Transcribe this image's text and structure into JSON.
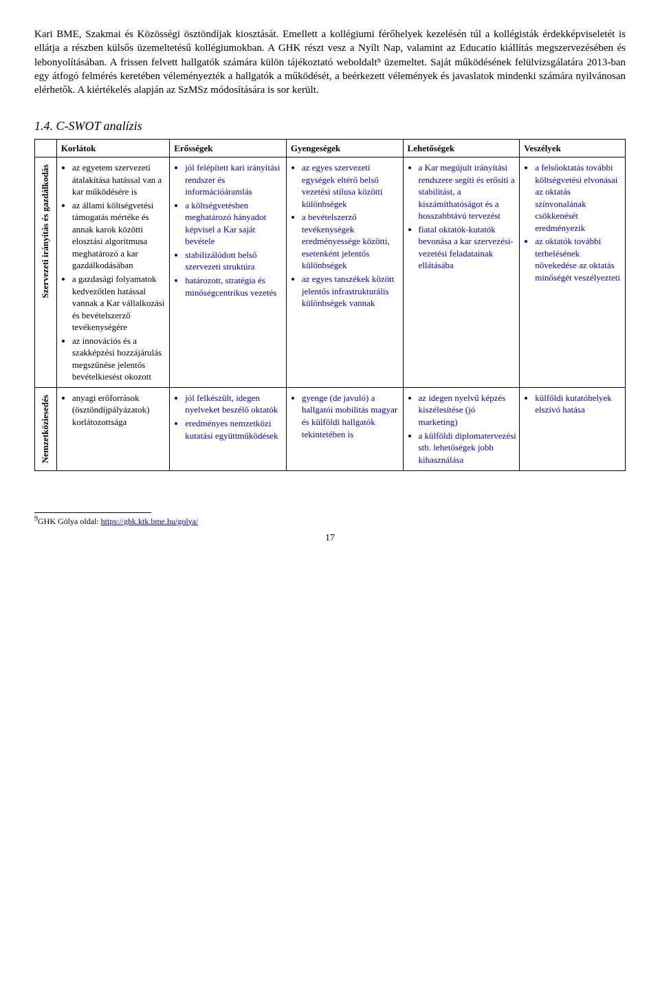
{
  "paragraph": "Kari BME, Szakmai és Közösségi ösztöndíjak kiosztását. Emellett a kollégiumi férőhelyek kezelésén túl a kollégisták érdekképviseletét is ellátja a részben külsős üzemeltetésű kollégiumokban. A GHK részt vesz a Nyílt Nap, valamint az Educatio kiállítás megszervezésében és lebonyolításában. A frissen felvett hallgatók számára külön tájékoztató weboldalt⁹ üzemeltet. Saját működésének felülvizsgálatára 2013-ban egy átfogó felmérés keretében véleményezték a hallgatók a működését, a beérkezett vélemények és javaslatok mindenki számára nyilvánosan elérhetők. A kiértékelés alapján az SzMSz módosítására is sor került.",
  "section_title": "1.4. C-SWOT analízis",
  "headers": {
    "korlatok": "Korlátok",
    "erossegek": "Erősségek",
    "gyengesegek": "Gyengeségek",
    "lehetosegek": "Lehetőségek",
    "veszelyek": "Veszélyek"
  },
  "rows": [
    {
      "label": "Szervezeti irányítás és gazdálkodás",
      "korlatok": [
        "az egyetem szervezeti átalakítása hatással van a kar működésére is",
        "az állami költségvetési támogatás mértéke és annak karok közötti elosztási algoritmusa meghatározó a kar gazdálkodásában",
        "a gazdasági folyamatok kedvezőtlen hatással vannak a Kar vállalkozási és bevételszerző tevékenységére",
        "az innovációs és a szakképzési hozzájárulás megszűnése jelentős bevételkiesést okozott"
      ],
      "erossegek": [
        "jól felépített kari irányítási rendszer és információáramlás",
        "a költségvetésben meghatározó hányadot képvisel a Kar saját bevétele",
        "stabilizálódott belső szervezeti struktúra",
        "határozott, stratégia és minőségcentrikus vezetés"
      ],
      "gyengesegek": [
        "az egyes szervezeti egységek eltérő belső vezetési stílusa közötti különbségek",
        "a bevételszerző tevékenységek eredményessége közötti, esetenként jelentős különbségek",
        "az egyes tanszékek között jelentős infrastrukturális különbségek vannak"
      ],
      "lehetosegek": [
        "a Kar megújult irányítási rendszere segíti és erősíti a stabilitást, a kiszámíthatóságot és a hosszabbtávú tervezést",
        "fiatal oktatók-kutatók bevonása a kar szervezési-vezetési feladatainak ellátásába"
      ],
      "veszelyek": [
        "a felsőoktatás további költségvetési elvonásai az oktatás színvonalának csökkenését eredményezik",
        "az oktatók további terhelésének növekedése az oktatás minőségét veszélyezteti"
      ]
    },
    {
      "label": "Nemzetköziesedés",
      "korlatok": [
        "anyagi erőforrások (ösztöndíjpályázatok) korlátozottsága"
      ],
      "erossegek": [
        "jól felkészült, idegen nyelveket beszélő oktatók",
        "eredményes nemzetközi kutatási együttműködések"
      ],
      "gyengesegek": [
        "gyenge (de javuló) a hallgatói mobilitás magyar és külföldi hallgatók tekintetében is"
      ],
      "lehetosegek": [
        "az idegen nyelvű képzés kiszélesítése (jó marketing)",
        "a külföldi diplomatervezési stb. lehetőségek jobb kihasználása"
      ],
      "veszelyek": [
        "külföldi kutatóhelyek elszívó hatása"
      ]
    }
  ],
  "footnote": {
    "marker": "9",
    "text": "GHK Gólya oldal: ",
    "link_text": "https://ghk.ktk.bme.hu/golya/",
    "link_href": "https://ghk.ktk.bme.hu/golya/"
  },
  "page_number": "17"
}
